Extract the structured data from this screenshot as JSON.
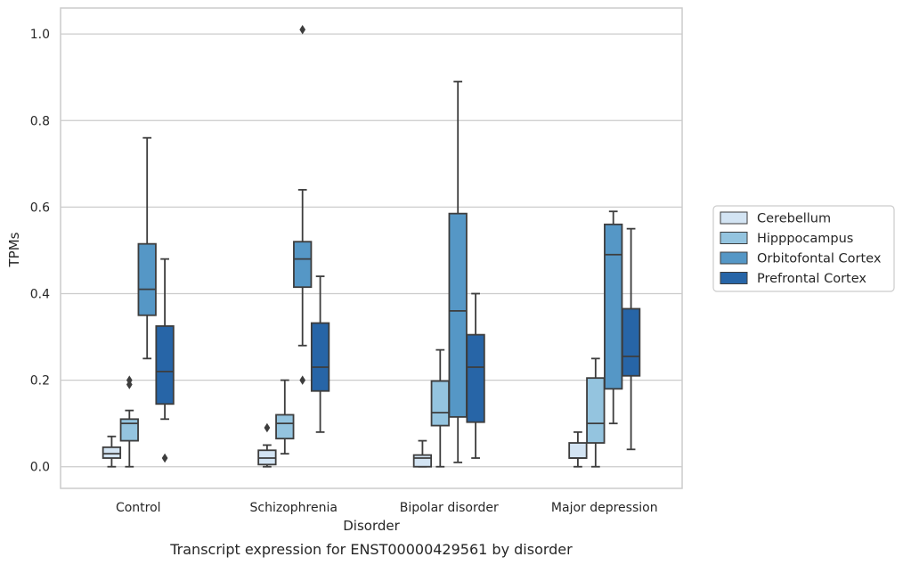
{
  "caption": "Transcript expression for ENST00000429561 by disorder",
  "chart_data": {
    "type": "box",
    "xlabel": "Disorder",
    "ylabel": "TPMs",
    "ylim": [
      -0.05,
      1.06
    ],
    "yticks": [
      0.0,
      0.2,
      0.4,
      0.6,
      0.8,
      1.0
    ],
    "ytick_labels": [
      "0.0",
      "0.2",
      "0.4",
      "0.6",
      "0.8",
      "1.0"
    ],
    "grid": true,
    "legend_position": "right",
    "categories": [
      "Control",
      "Schizophrenia",
      "Bipolar disorder",
      "Major depression"
    ],
    "series": [
      {
        "name": "Cerebellum",
        "color": "#d3e4f3",
        "boxes": [
          {
            "whisker_low": 0.0,
            "q1": 0.02,
            "median": 0.03,
            "q3": 0.045,
            "whisker_high": 0.07,
            "outliers": []
          },
          {
            "whisker_low": 0.0,
            "q1": 0.005,
            "median": 0.02,
            "q3": 0.038,
            "whisker_high": 0.05,
            "outliers": [
              0.09
            ]
          },
          {
            "whisker_low": 0.0,
            "q1": 0.0,
            "median": 0.02,
            "q3": 0.027,
            "whisker_high": 0.06,
            "outliers": []
          },
          {
            "whisker_low": 0.0,
            "q1": 0.02,
            "median": 0.02,
            "q3": 0.055,
            "whisker_high": 0.08,
            "outliers": []
          }
        ]
      },
      {
        "name": "Hipppocampus",
        "color": "#94c4df",
        "boxes": [
          {
            "whisker_low": 0.0,
            "q1": 0.06,
            "median": 0.1,
            "q3": 0.11,
            "whisker_high": 0.13,
            "outliers": [
              0.19,
              0.2
            ]
          },
          {
            "whisker_low": 0.03,
            "q1": 0.065,
            "median": 0.1,
            "q3": 0.12,
            "whisker_high": 0.2,
            "outliers": []
          },
          {
            "whisker_low": 0.0,
            "q1": 0.095,
            "median": 0.125,
            "q3": 0.198,
            "whisker_high": 0.27,
            "outliers": []
          },
          {
            "whisker_low": 0.0,
            "q1": 0.055,
            "median": 0.1,
            "q3": 0.205,
            "whisker_high": 0.25,
            "outliers": []
          }
        ]
      },
      {
        "name": "Orbitofontal Cortex",
        "color": "#5597c6",
        "boxes": [
          {
            "whisker_low": 0.25,
            "q1": 0.35,
            "median": 0.41,
            "q3": 0.515,
            "whisker_high": 0.76,
            "outliers": []
          },
          {
            "whisker_low": 0.28,
            "q1": 0.415,
            "median": 0.48,
            "q3": 0.52,
            "whisker_high": 0.64,
            "outliers": [
              0.2,
              1.01
            ]
          },
          {
            "whisker_low": 0.01,
            "q1": 0.115,
            "median": 0.36,
            "q3": 0.585,
            "whisker_high": 0.89,
            "outliers": []
          },
          {
            "whisker_low": 0.1,
            "q1": 0.18,
            "median": 0.49,
            "q3": 0.56,
            "whisker_high": 0.59,
            "outliers": []
          }
        ]
      },
      {
        "name": "Prefrontal Cortex",
        "color": "#2765a7",
        "boxes": [
          {
            "whisker_low": 0.11,
            "q1": 0.145,
            "median": 0.22,
            "q3": 0.325,
            "whisker_high": 0.48,
            "outliers": [
              0.02
            ]
          },
          {
            "whisker_low": 0.08,
            "q1": 0.175,
            "median": 0.23,
            "q3": 0.332,
            "whisker_high": 0.44,
            "outliers": []
          },
          {
            "whisker_low": 0.02,
            "q1": 0.103,
            "median": 0.23,
            "q3": 0.305,
            "whisker_high": 0.4,
            "outliers": []
          },
          {
            "whisker_low": 0.04,
            "q1": 0.21,
            "median": 0.255,
            "q3": 0.365,
            "whisker_high": 0.55,
            "outliers": []
          }
        ]
      }
    ]
  }
}
